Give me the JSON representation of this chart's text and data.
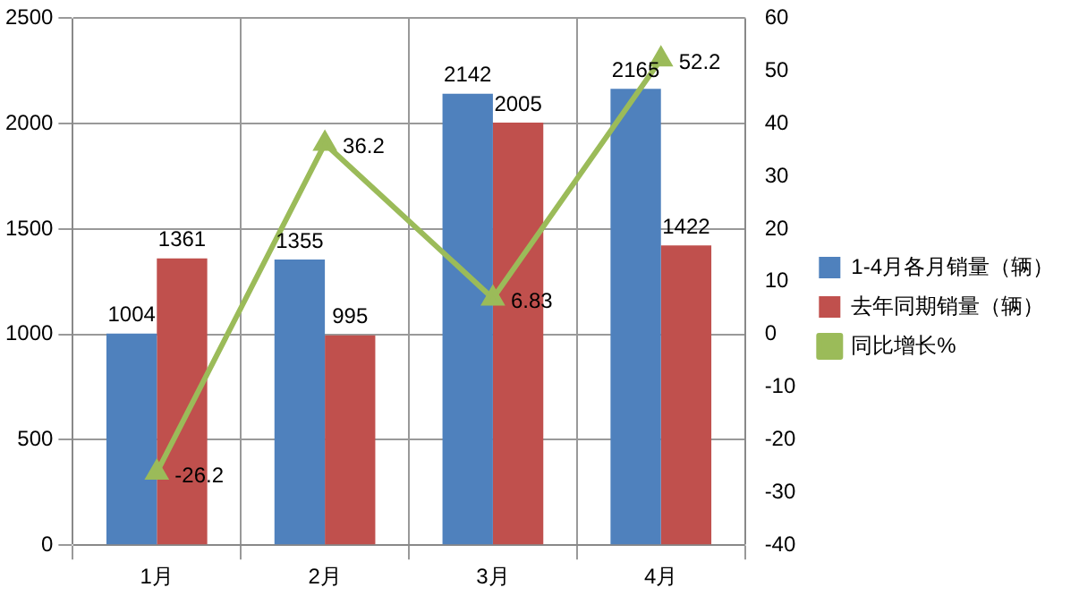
{
  "chart_data": {
    "type": "bar",
    "categories": [
      "1月",
      "2月",
      "3月",
      "4月"
    ],
    "series": [
      {
        "name": "1-4月各月销量（辆）",
        "color": "#4f81bd",
        "values": [
          1004,
          1355,
          2142,
          2165
        ]
      },
      {
        "name": "去年同期销量（辆）",
        "color": "#c0504d",
        "values": [
          1361,
          995,
          2005,
          1422
        ]
      },
      {
        "name": "同比增长%",
        "type": "line",
        "axis": "y2",
        "color": "#9bbb59",
        "values": [
          -26.2,
          36.2,
          6.83,
          52.2
        ]
      }
    ],
    "ylim": [
      0,
      2500
    ],
    "yticks": [
      0,
      500,
      1000,
      1500,
      2000,
      2500
    ],
    "y2lim": [
      -40,
      60
    ],
    "y2ticks": [
      -40,
      -30,
      -20,
      -10,
      0,
      10,
      20,
      30,
      40,
      50,
      60
    ],
    "grid": true,
    "legend": "right",
    "marker": "triangle",
    "data_labels": true
  }
}
